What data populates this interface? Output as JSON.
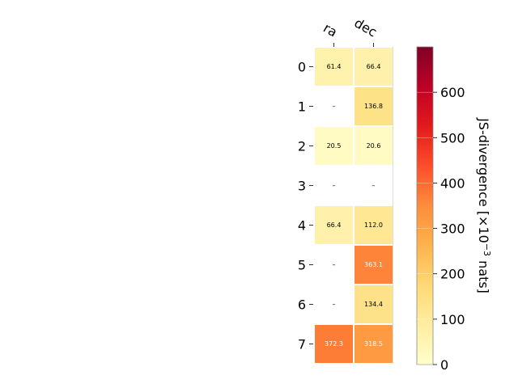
{
  "chart_data": {
    "type": "heatmap",
    "columns": [
      "ra",
      "dec"
    ],
    "rows": [
      "0",
      "1",
      "2",
      "3",
      "4",
      "5",
      "6",
      "7"
    ],
    "values": [
      [
        61.4,
        66.4
      ],
      [
        null,
        136.8
      ],
      [
        20.5,
        20.6
      ],
      [
        null,
        null
      ],
      [
        66.4,
        112.0
      ],
      [
        null,
        363.1
      ],
      [
        null,
        134.4
      ],
      [
        372.3,
        318.5
      ]
    ],
    "cell_labels": [
      [
        "61.4",
        "66.4"
      ],
      [
        "–",
        "136.8"
      ],
      [
        "20.5",
        "20.6"
      ],
      [
        "–",
        "–"
      ],
      [
        "66.4",
        "112.0"
      ],
      [
        "–",
        "363.1"
      ],
      [
        "–",
        "134.4"
      ],
      [
        "372.3",
        "318.5"
      ]
    ],
    "colorbar": {
      "label": "JS-divergence [×10",
      "label_exp": "−3",
      "label_unit": " nats]",
      "range": [
        0,
        700
      ],
      "ticks": [
        0,
        100,
        200,
        300,
        400,
        500,
        600
      ],
      "tick_labels": [
        "0",
        "100",
        "200",
        "300",
        "400",
        "500",
        "600"
      ],
      "colormap": [
        "#ffffcc",
        "#ffeda0",
        "#fed976",
        "#feb24c",
        "#fd8d3c",
        "#fc4e2a",
        "#e31a1c",
        "#bd0026",
        "#800026"
      ]
    },
    "grid": false
  }
}
